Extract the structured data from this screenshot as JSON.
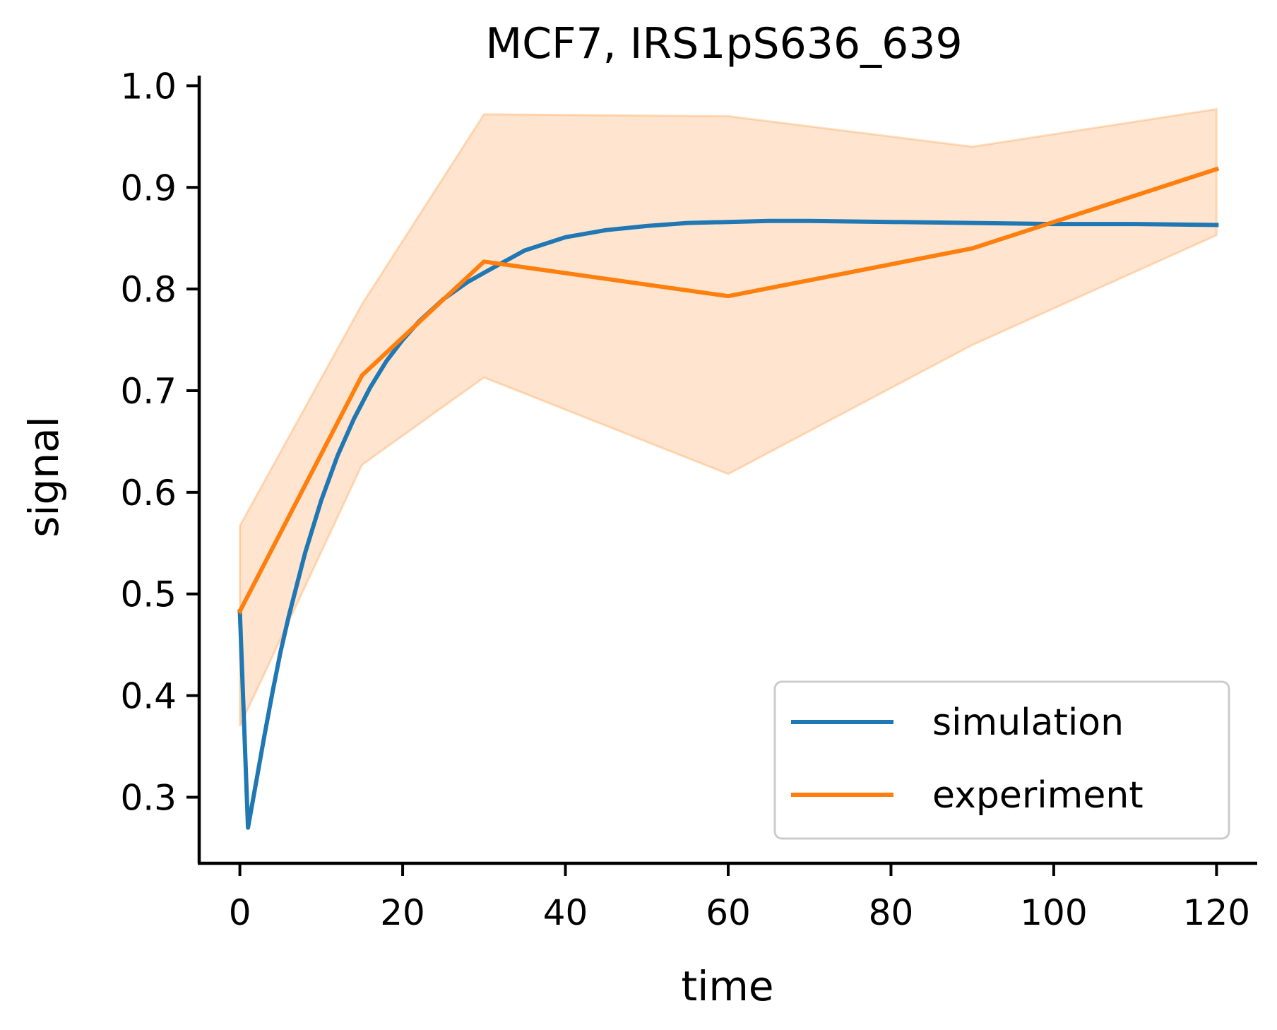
{
  "chart_data": {
    "type": "line",
    "title": "MCF7, IRS1pS636_639",
    "xlabel": "time",
    "ylabel": "signal",
    "xlim": [
      -5,
      125
    ],
    "ylim": [
      0.235,
      1.01
    ],
    "xticks": [
      0,
      20,
      40,
      60,
      80,
      100,
      120
    ],
    "yticks": [
      0.3,
      0.4,
      0.5,
      0.6,
      0.7,
      0.8,
      0.9,
      1.0
    ],
    "grid": false,
    "legend_position": "lower-right",
    "series": [
      {
        "name": "simulation",
        "color": "#1f77b4",
        "x": [
          0,
          1,
          2,
          3,
          4,
          5,
          6,
          8,
          10,
          12,
          14,
          16,
          18,
          20,
          22,
          25,
          28,
          30,
          35,
          40,
          45,
          50,
          55,
          60,
          65,
          70,
          80,
          90,
          100,
          110,
          120
        ],
        "y": [
          0.483,
          0.27,
          0.315,
          0.36,
          0.403,
          0.443,
          0.478,
          0.54,
          0.592,
          0.636,
          0.672,
          0.703,
          0.729,
          0.75,
          0.768,
          0.79,
          0.807,
          0.816,
          0.838,
          0.851,
          0.858,
          0.862,
          0.865,
          0.866,
          0.867,
          0.867,
          0.866,
          0.865,
          0.864,
          0.864,
          0.863
        ]
      },
      {
        "name": "experiment",
        "color": "#ff7f0e",
        "x": [
          0,
          15,
          30,
          60,
          90,
          120
        ],
        "y": [
          0.483,
          0.715,
          0.827,
          0.793,
          0.84,
          0.918
        ],
        "band_lower": [
          0.37,
          0.627,
          0.713,
          0.618,
          0.745,
          0.853
        ],
        "band_upper": [
          0.567,
          0.785,
          0.972,
          0.97,
          0.94,
          0.977
        ]
      }
    ]
  }
}
